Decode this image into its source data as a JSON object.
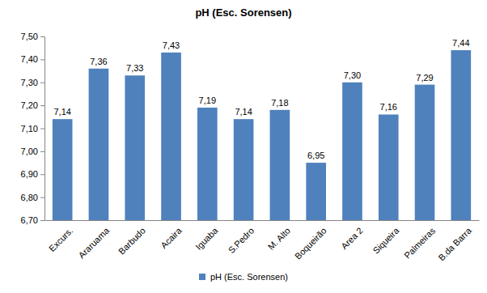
{
  "chart_data": {
    "type": "bar",
    "title": "pH (Esc. Sorensen)",
    "categories": [
      "Excurs.",
      "Araruama",
      "Barbudo",
      "Acaira",
      "Iguaba",
      "S.Pedro",
      "M. Alto",
      "Boqueirão",
      "Area 2",
      "Siqueira",
      "Palmeiras",
      "B.da Barra"
    ],
    "series": [
      {
        "name": "pH (Esc. Sorensen)",
        "color": "#4f81bd",
        "values": [
          7.14,
          7.36,
          7.33,
          7.43,
          7.19,
          7.14,
          7.18,
          6.95,
          7.3,
          7.16,
          7.29,
          7.44
        ],
        "value_labels": [
          "7,14",
          "7,36",
          "7,33",
          "7,43",
          "7,19",
          "7,14",
          "7,18",
          "6,95",
          "7,30",
          "7,16",
          "7,29",
          "7,44"
        ]
      }
    ],
    "ylim": [
      6.7,
      7.5
    ],
    "yticks": [
      {
        "value": 6.7,
        "label": "6,70"
      },
      {
        "value": 6.8,
        "label": "6,80"
      },
      {
        "value": 6.9,
        "label": "6,90"
      },
      {
        "value": 7.0,
        "label": "7,00"
      },
      {
        "value": 7.1,
        "label": "7,10"
      },
      {
        "value": 7.2,
        "label": "7,20"
      },
      {
        "value": 7.3,
        "label": "7,30"
      },
      {
        "value": 7.4,
        "label": "7,40"
      },
      {
        "value": 7.5,
        "label": "7,50"
      }
    ],
    "grid": false,
    "data_labels": true,
    "legend": "bottom"
  }
}
